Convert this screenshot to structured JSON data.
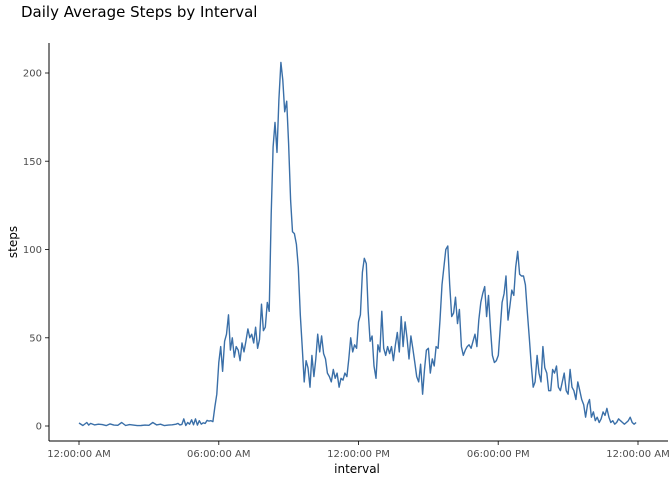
{
  "chart_data": {
    "type": "line",
    "title": "Daily Average Steps by Interval",
    "xlabel": "interval",
    "ylabel": "steps",
    "xlim": [
      0,
      1440
    ],
    "ylim": [
      -10,
      216
    ],
    "yticks": [
      0,
      50,
      100,
      150,
      200
    ],
    "xticks": [
      {
        "value": 0,
        "label": "12:00:00 AM"
      },
      {
        "value": 360,
        "label": "06:00:00 AM"
      },
      {
        "value": 720,
        "label": "12:00:00 PM"
      },
      {
        "value": 1080,
        "label": "06:00:00 PM"
      },
      {
        "value": 1440,
        "label": "12:00:00 AM"
      }
    ],
    "grid": false,
    "series": [
      {
        "color": "#3a6fa8",
        "x": [
          0,
          10,
          20,
          25,
          30,
          40,
          50,
          60,
          70,
          80,
          90,
          100,
          110,
          120,
          130,
          140,
          150,
          160,
          170,
          180,
          190,
          200,
          210,
          220,
          230,
          240,
          250,
          255,
          260,
          265,
          270,
          275,
          280,
          285,
          290,
          295,
          300,
          305,
          310,
          315,
          320,
          325,
          330,
          335,
          340,
          345,
          350,
          355,
          360,
          365,
          370,
          375,
          380,
          385,
          390,
          395,
          400,
          405,
          410,
          415,
          420,
          425,
          430,
          435,
          440,
          445,
          450,
          455,
          460,
          465,
          470,
          475,
          480,
          485,
          490,
          495,
          500,
          505,
          510,
          515,
          520,
          525,
          530,
          535,
          540,
          545,
          550,
          555,
          560,
          565,
          570,
          575,
          580,
          585,
          590,
          595,
          600,
          605,
          610,
          615,
          620,
          625,
          630,
          635,
          640,
          645,
          650,
          655,
          660,
          665,
          670,
          675,
          680,
          685,
          690,
          695,
          700,
          705,
          710,
          715,
          720,
          725,
          730,
          735,
          740,
          745,
          750,
          755,
          760,
          765,
          770,
          775,
          780,
          785,
          790,
          795,
          800,
          805,
          810,
          815,
          820,
          825,
          830,
          835,
          840,
          845,
          850,
          855,
          860,
          865,
          870,
          875,
          880,
          885,
          890,
          895,
          900,
          905,
          910,
          915,
          920,
          925,
          930,
          935,
          940,
          945,
          950,
          955,
          960,
          965,
          970,
          975,
          980,
          985,
          990,
          995,
          1000,
          1005,
          1010,
          1015,
          1020,
          1025,
          1030,
          1035,
          1040,
          1045,
          1050,
          1055,
          1060,
          1065,
          1070,
          1075,
          1080,
          1085,
          1090,
          1095,
          1100,
          1105,
          1110,
          1115,
          1120,
          1125,
          1130,
          1135,
          1140,
          1145,
          1150,
          1155,
          1160,
          1165,
          1170,
          1175,
          1180,
          1185,
          1190,
          1195,
          1200,
          1205,
          1210,
          1215,
          1220,
          1225,
          1230,
          1235,
          1240,
          1245,
          1250,
          1255,
          1260,
          1265,
          1270,
          1275,
          1280,
          1285,
          1290,
          1295,
          1300,
          1305,
          1310,
          1315,
          1320,
          1325,
          1330,
          1335,
          1340,
          1345,
          1350,
          1355,
          1360,
          1365,
          1370,
          1375,
          1380,
          1385,
          1390,
          1395,
          1400,
          1405,
          1410,
          1415,
          1420,
          1425,
          1430,
          1435
        ],
        "values": [
          1.7,
          0.3,
          2,
          0.5,
          1.5,
          0.6,
          1,
          0.8,
          0.2,
          1.2,
          0.5,
          0.4,
          2,
          0.3,
          0.8,
          0.5,
          0.2,
          0.3,
          0.5,
          0.4,
          2,
          0.6,
          1,
          0.2,
          0.5,
          0.7,
          1,
          1.5,
          0.6,
          0.9,
          4,
          0.3,
          2,
          1,
          3.5,
          0.7,
          4,
          0.5,
          3,
          1,
          1.8,
          1.5,
          3.2,
          2.8,
          3,
          2.5,
          11,
          18,
          36,
          45,
          31,
          48,
          52,
          63,
          43,
          50,
          39,
          45,
          43,
          37,
          47,
          42,
          48,
          55,
          50,
          52,
          47,
          56,
          44,
          49,
          69,
          54,
          56,
          70,
          65,
          120,
          158,
          172,
          155,
          185,
          206,
          196,
          178,
          184,
          160,
          128,
          110,
          109,
          103,
          90,
          63,
          45,
          25,
          37,
          33,
          22,
          40,
          28,
          38,
          52,
          42,
          51,
          41,
          38,
          30,
          28,
          25,
          32,
          27,
          30,
          22,
          27,
          26,
          30,
          28,
          38,
          50,
          42,
          46,
          44,
          59,
          63,
          87,
          95,
          92,
          65,
          48,
          51,
          34,
          27,
          46,
          42,
          65,
          44,
          40,
          45,
          41,
          45,
          37,
          46,
          53,
          42,
          62,
          45,
          59,
          50,
          38,
          51,
          44,
          36,
          28,
          25,
          35,
          18,
          32,
          43,
          44,
          30,
          38,
          34,
          45,
          44,
          60,
          80,
          90,
          100,
          102,
          80,
          62,
          64,
          73,
          58,
          66,
          45,
          40,
          43,
          45,
          46,
          44,
          48,
          52,
          45,
          60,
          70,
          75,
          79,
          62,
          74,
          55,
          40,
          36,
          37,
          40,
          55,
          70,
          75,
          85,
          60,
          68,
          77,
          74,
          90,
          99,
          86,
          85,
          85,
          80,
          64,
          50,
          35,
          22,
          25,
          40,
          30,
          25,
          45,
          33,
          30,
          20,
          20,
          32,
          30,
          34,
          22,
          20,
          25,
          30,
          20,
          18,
          32,
          22,
          20,
          15,
          25,
          20,
          15,
          12,
          5,
          12,
          15,
          5,
          8,
          3,
          5,
          2,
          4,
          8,
          6,
          10,
          5,
          2,
          3,
          1,
          2,
          4,
          3,
          2,
          1,
          2,
          3,
          5,
          2,
          1,
          2
        ]
      }
    ]
  }
}
